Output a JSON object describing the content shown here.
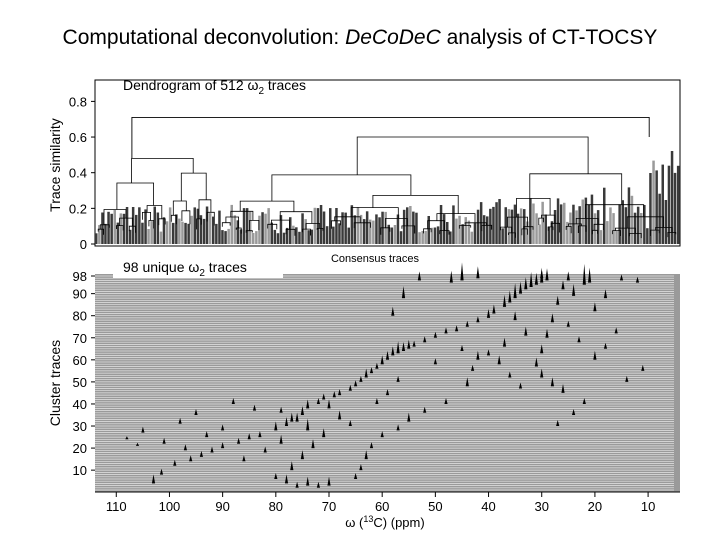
{
  "title": {
    "prefix": "Computational deconvolution: ",
    "italic": "DeCoDeC",
    "suffix": " analysis of CT-TOCSY"
  },
  "colors": {
    "annotation": "#cc0000",
    "ink": "#000000",
    "panel_bg": "#9a9a9a",
    "bars": "#3a3a3a"
  },
  "chart_data": [
    {
      "type": "bar",
      "annotation": {
        "prefix": "Dendrogram of 512 ω",
        "sub": "2",
        "suffix": " traces"
      },
      "ylabel": "Trace similarity",
      "xlabel": "Consensus traces",
      "yticks": [
        "0.8",
        "0.6",
        "0.4",
        "0.2",
        "0"
      ],
      "ytick_values": [
        0.8,
        0.6,
        0.4,
        0.2,
        0
      ],
      "ylim": [
        0,
        0.92
      ],
      "n_traces": 512,
      "root_height": 0.71,
      "main_split_height": 0.48
    },
    {
      "type": "scatter",
      "annotation": {
        "prefix": "98 unique ω",
        "sub": "2",
        "suffix": " traces"
      },
      "ylabel": "Cluster traces",
      "xlabel": {
        "prefix": "ω (",
        "sup": "13",
        "suffix": "C)  (ppm)"
      },
      "xticks": [
        "110",
        "100",
        "90",
        "80",
        "70",
        "60",
        "50",
        "40",
        "30",
        "20",
        "10"
      ],
      "xtick_values": [
        110,
        100,
        90,
        80,
        70,
        60,
        50,
        40,
        30,
        20,
        10
      ],
      "yticks": [
        "98",
        "90",
        "80",
        "70",
        "60",
        "50",
        "40",
        "30",
        "20",
        "10"
      ],
      "ytick_values": [
        98,
        90,
        80,
        70,
        60,
        50,
        40,
        30,
        20,
        10
      ],
      "xlim": [
        114,
        4
      ],
      "ylim": [
        1,
        98
      ],
      "peaks": [
        [
          103,
          4,
          3
        ],
        [
          101.5,
          8,
          2
        ],
        [
          99,
          12,
          2
        ],
        [
          96,
          14,
          2
        ],
        [
          94,
          16,
          2
        ],
        [
          92,
          18,
          2
        ],
        [
          90,
          20,
          2
        ],
        [
          87,
          22,
          2
        ],
        [
          85,
          24,
          2
        ],
        [
          83,
          25,
          2
        ],
        [
          80,
          28,
          3
        ],
        [
          78,
          30,
          3
        ],
        [
          76,
          32,
          3
        ],
        [
          75,
          35,
          3
        ],
        [
          74,
          38,
          3
        ],
        [
          72,
          40,
          2
        ],
        [
          71,
          42,
          2
        ],
        [
          69,
          43,
          2
        ],
        [
          68,
          44,
          2
        ],
        [
          66,
          46,
          2
        ],
        [
          65,
          48,
          2
        ],
        [
          64,
          50,
          2
        ],
        [
          63,
          52,
          3
        ],
        [
          62,
          54,
          2
        ],
        [
          61,
          56,
          2
        ],
        [
          60,
          58,
          3
        ],
        [
          59,
          60,
          3
        ],
        [
          58,
          62,
          3
        ],
        [
          57,
          63,
          4
        ],
        [
          56,
          64,
          3
        ],
        [
          55,
          65,
          3
        ],
        [
          54,
          66,
          2
        ],
        [
          52,
          68,
          2
        ],
        [
          50,
          70,
          2
        ],
        [
          48,
          72,
          2
        ],
        [
          46,
          73,
          2
        ],
        [
          44,
          75,
          2
        ],
        [
          42,
          77,
          2
        ],
        [
          40,
          79,
          3
        ],
        [
          39,
          81,
          3
        ],
        [
          37,
          84,
          4
        ],
        [
          36,
          86,
          4
        ],
        [
          35,
          88,
          5
        ],
        [
          34,
          90,
          4
        ],
        [
          33,
          92,
          4
        ],
        [
          32,
          93,
          5
        ],
        [
          31,
          94,
          4
        ],
        [
          30,
          95,
          5
        ],
        [
          29,
          96,
          4
        ],
        [
          30,
          97,
          3
        ],
        [
          25,
          96,
          3
        ],
        [
          26,
          92,
          3
        ],
        [
          27,
          85,
          3
        ],
        [
          28,
          77,
          3
        ],
        [
          29,
          70,
          3
        ],
        [
          30,
          63,
          3
        ],
        [
          31,
          57,
          3
        ],
        [
          30,
          52,
          3
        ],
        [
          28,
          48,
          3
        ],
        [
          26,
          45,
          3
        ],
        [
          42,
          60,
          3
        ],
        [
          43,
          55,
          2
        ],
        [
          44,
          48,
          3
        ],
        [
          38,
          58,
          3
        ],
        [
          36,
          52,
          2
        ],
        [
          34,
          47,
          2
        ],
        [
          48,
          40,
          2
        ],
        [
          52,
          36,
          2
        ],
        [
          55,
          32,
          3
        ],
        [
          57,
          28,
          2
        ],
        [
          60,
          25,
          2
        ],
        [
          62,
          20,
          2
        ],
        [
          63,
          15,
          3
        ],
        [
          64,
          10,
          2
        ],
        [
          65,
          6,
          2
        ],
        [
          70,
          3,
          3
        ],
        [
          72,
          2,
          2
        ],
        [
          74,
          3,
          3
        ],
        [
          76,
          2,
          2
        ],
        [
          78,
          4,
          3
        ],
        [
          80,
          6,
          2
        ],
        [
          77,
          10,
          3
        ],
        [
          75,
          15,
          3
        ],
        [
          73,
          20,
          3
        ],
        [
          71,
          25,
          3
        ],
        [
          74,
          28,
          4
        ],
        [
          77,
          32,
          3
        ],
        [
          79,
          36,
          2
        ],
        [
          70,
          38,
          3
        ],
        [
          68,
          33,
          3
        ],
        [
          66,
          30,
          2
        ],
        [
          105,
          27,
          2
        ],
        [
          98,
          31,
          2
        ],
        [
          95,
          35,
          2
        ],
        [
          88,
          40,
          2
        ],
        [
          84,
          37,
          2
        ],
        [
          101,
          22,
          2
        ],
        [
          97,
          19,
          2
        ],
        [
          20,
          60,
          3
        ],
        [
          18,
          65,
          2
        ],
        [
          16,
          72,
          2
        ],
        [
          14,
          50,
          2
        ],
        [
          11,
          55,
          2
        ],
        [
          22,
          40,
          2
        ],
        [
          24,
          35,
          2
        ],
        [
          27,
          30,
          2
        ],
        [
          15,
          96,
          2
        ],
        [
          12,
          95,
          2
        ],
        [
          22,
          94,
          7
        ],
        [
          21,
          95,
          5
        ],
        [
          24,
          89,
          4
        ],
        [
          45,
          96,
          6
        ],
        [
          47,
          95,
          4
        ],
        [
          42,
          97,
          4
        ],
        [
          53,
          96,
          3
        ],
        [
          56,
          88,
          4
        ],
        [
          58,
          80,
          3
        ],
        [
          35,
          78,
          3
        ],
        [
          33,
          71,
          3
        ],
        [
          37,
          66,
          3
        ],
        [
          40,
          62,
          2
        ],
        [
          50,
          58,
          2
        ],
        [
          45,
          64,
          2
        ],
        [
          25,
          75,
          2
        ],
        [
          23,
          68,
          2
        ],
        [
          20,
          82,
          3
        ],
        [
          18,
          88,
          3
        ],
        [
          61,
          40,
          2
        ],
        [
          59,
          44,
          2
        ],
        [
          57,
          50,
          2
        ],
        [
          86,
          14,
          2
        ],
        [
          82,
          18,
          2
        ],
        [
          79,
          22,
          3
        ],
        [
          90,
          28,
          2
        ],
        [
          93,
          25,
          2
        ],
        [
          108,
          24,
          1
        ],
        [
          106,
          21,
          1
        ]
      ]
    }
  ]
}
